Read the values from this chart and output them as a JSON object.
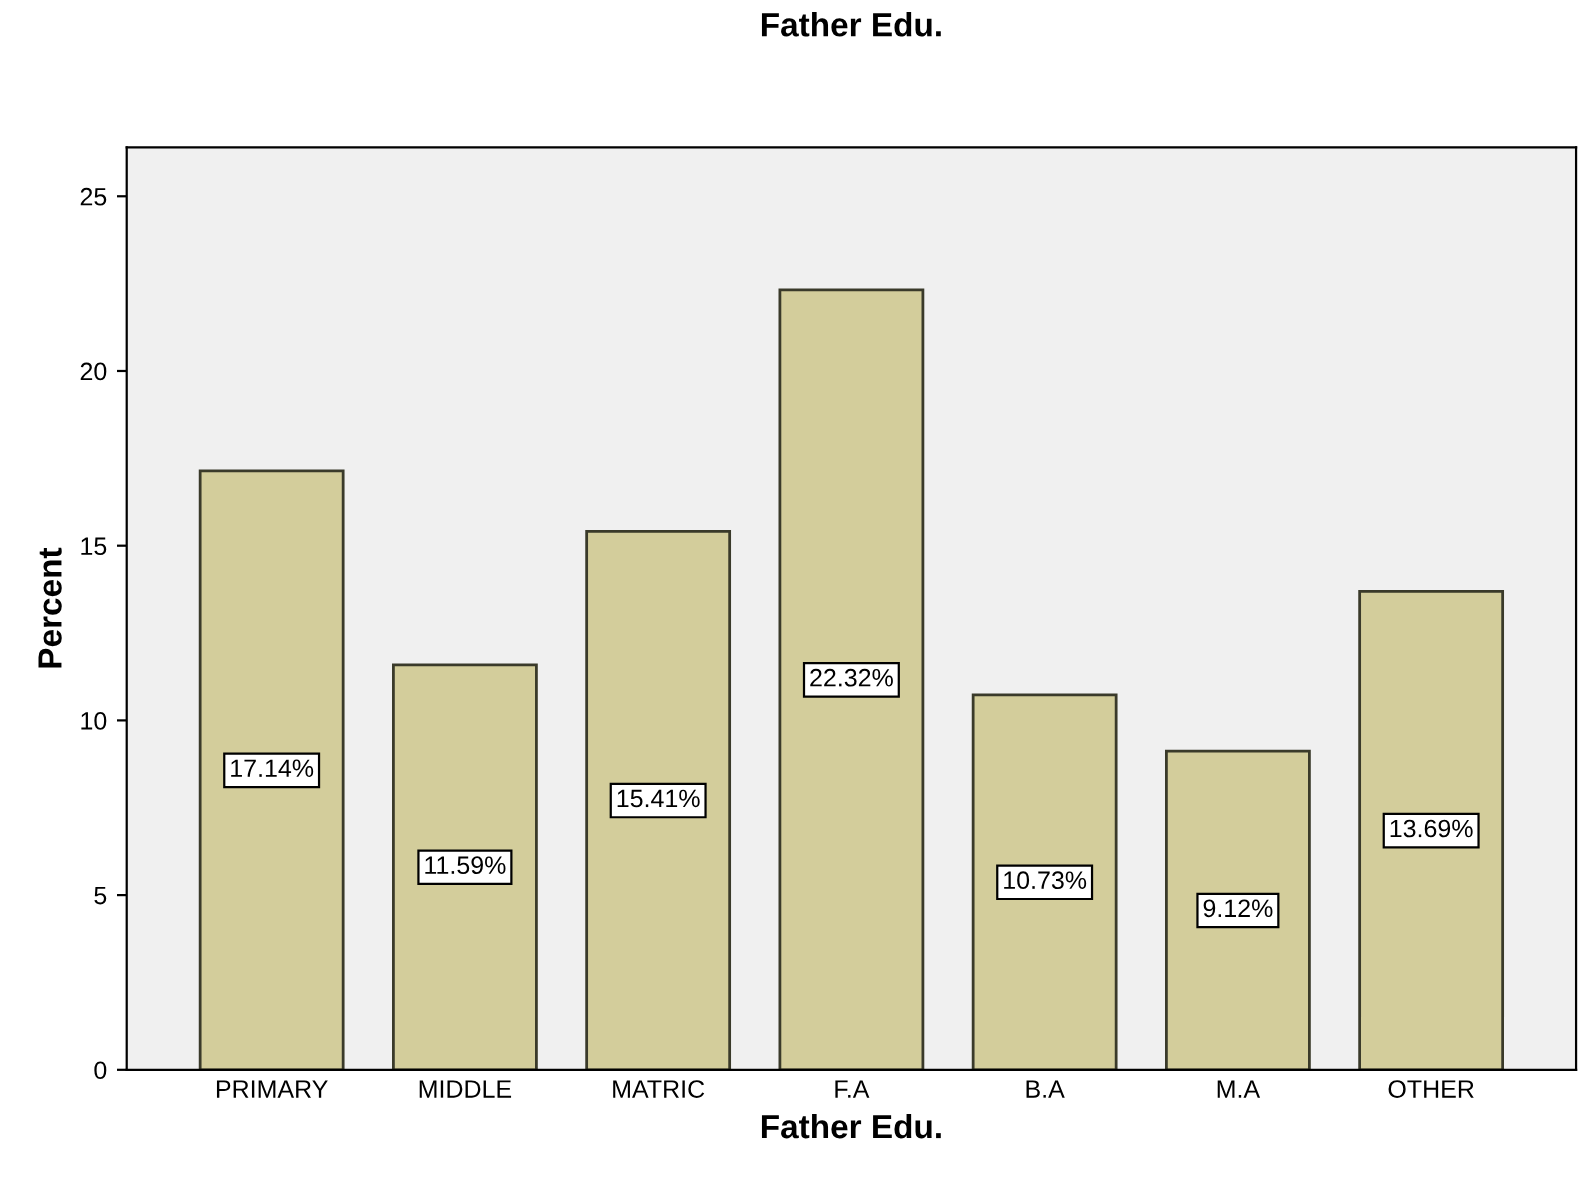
{
  "chart_data": {
    "type": "bar",
    "title": "Father Edu.",
    "xlabel": "Father Edu.",
    "ylabel": "Percent",
    "categories": [
      "PRIMARY",
      "MIDDLE",
      "MATRIC",
      "F.A",
      "B.A",
      "M.A",
      "OTHER"
    ],
    "values": [
      17.14,
      11.59,
      15.41,
      22.32,
      10.73,
      9.12,
      13.69
    ],
    "value_labels": [
      "17.14%",
      "11.59%",
      "15.41%",
      "22.32%",
      "10.73%",
      "9.12%",
      "13.69%"
    ],
    "color": "#d3cd9b",
    "ylim": [
      0,
      26.4
    ],
    "yticks": [
      0,
      5,
      10,
      15,
      20,
      25
    ],
    "grid": false
  }
}
